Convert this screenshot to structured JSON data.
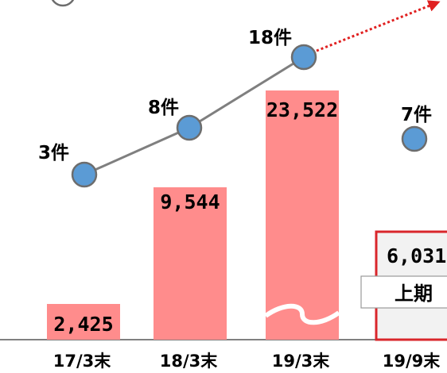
{
  "chart_data": {
    "type": "bar",
    "categories": [
      "17/3末",
      "18/3末",
      "19/3末",
      "19/9末"
    ],
    "bars": {
      "values": [
        2425,
        9544,
        23522,
        6031
      ],
      "labels": [
        "2,425",
        "9,544",
        "23,522",
        "6,031"
      ],
      "color": "#ff8c8c",
      "highlight_border": "#d9262b",
      "highlight_fill": "#f2f2f2"
    },
    "line": {
      "values": [
        3,
        8,
        18,
        7
      ],
      "labels": [
        "3件",
        "8件",
        "18件",
        "7件"
      ],
      "connected": [
        true,
        true,
        true,
        false
      ],
      "marker_color": "#5b9bd5",
      "marker_stroke": "#6d6d6d",
      "line_color": "#7f7f7f",
      "trend_arrow_color": "#e02020"
    },
    "axis_breaks": [
      "19/3末"
    ],
    "annotation_label": "上期",
    "legend": null,
    "grid": false
  }
}
